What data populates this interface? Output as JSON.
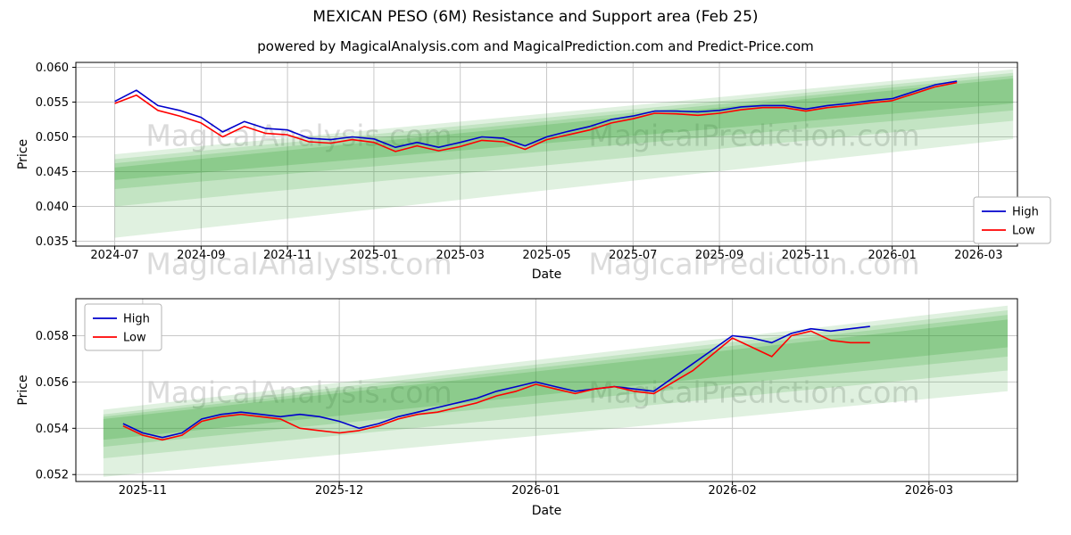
{
  "title": "MEXICAN PESO (6M) Resistance and Support area (Feb 25)",
  "subtitle": "powered by MagicalAnalysis.com and MagicalPrediction.com and Predict-Price.com",
  "watermarks": {
    "left": "MagicalAnalysis.com",
    "right": "MagicalPrediction.com"
  },
  "colors": {
    "high_line": "#0000cc",
    "low_line": "#ff0000",
    "band_green": "#2ca02c",
    "grid": "#c8c8c8"
  },
  "chart_data": [
    {
      "type": "line",
      "name": "top-chart",
      "xlabel": "Date",
      "ylabel": "Price",
      "x_unit": "months since 2024-07",
      "xlim": [
        -0.9,
        20.9
      ],
      "ylim": [
        0.0343,
        0.0607
      ],
      "grid": true,
      "xticks": [
        [
          0,
          "2024-07"
        ],
        [
          2,
          "2024-09"
        ],
        [
          4,
          "2024-11"
        ],
        [
          6,
          "2025-01"
        ],
        [
          8,
          "2025-03"
        ],
        [
          10,
          "2025-05"
        ],
        [
          12,
          "2025-07"
        ],
        [
          14,
          "2025-09"
        ],
        [
          16,
          "2025-11"
        ],
        [
          18,
          "2026-01"
        ],
        [
          20,
          "2026-03"
        ]
      ],
      "yticks": [
        [
          0.035,
          "0.035"
        ],
        [
          0.04,
          "0.040"
        ],
        [
          0.045,
          "0.045"
        ],
        [
          0.05,
          "0.050"
        ],
        [
          0.055,
          "0.055"
        ],
        [
          0.06,
          "0.060"
        ]
      ],
      "legend_position": "center-right",
      "series": [
        {
          "name": "High",
          "color": "#0000cc",
          "x": [
            0,
            0.5,
            1,
            1.5,
            2,
            2.5,
            3,
            3.5,
            4,
            4.5,
            5,
            5.5,
            6,
            6.5,
            7,
            7.5,
            8,
            8.5,
            9,
            9.5,
            10,
            10.5,
            11,
            11.5,
            12,
            12.5,
            13,
            13.5,
            14,
            14.5,
            15,
            15.5,
            16,
            16.5,
            17,
            17.5,
            18,
            18.5,
            19,
            19.5
          ],
          "y": [
            0.0551,
            0.0567,
            0.0545,
            0.0538,
            0.0528,
            0.0507,
            0.0522,
            0.0512,
            0.051,
            0.0498,
            0.0496,
            0.05,
            0.0497,
            0.0485,
            0.0492,
            0.0485,
            0.0492,
            0.05,
            0.0498,
            0.0487,
            0.05,
            0.0508,
            0.0515,
            0.0525,
            0.053,
            0.0537,
            0.0537,
            0.0536,
            0.0538,
            0.0543,
            0.0545,
            0.0545,
            0.054,
            0.0545,
            0.0548,
            0.0552,
            0.0555,
            0.0565,
            0.0575,
            0.058
          ]
        },
        {
          "name": "Low",
          "color": "#ff0000",
          "x": [
            0,
            0.5,
            1,
            1.5,
            2,
            2.5,
            3,
            3.5,
            4,
            4.5,
            5,
            5.5,
            6,
            6.5,
            7,
            7.5,
            8,
            8.5,
            9,
            9.5,
            10,
            10.5,
            11,
            11.5,
            12,
            12.5,
            13,
            13.5,
            14,
            14.5,
            15,
            15.5,
            16,
            16.5,
            17,
            17.5,
            18,
            18.5,
            19,
            19.5
          ],
          "y": [
            0.0548,
            0.056,
            0.0538,
            0.053,
            0.052,
            0.05,
            0.0515,
            0.0505,
            0.0503,
            0.0493,
            0.0491,
            0.0496,
            0.0492,
            0.0479,
            0.0487,
            0.048,
            0.0486,
            0.0495,
            0.0493,
            0.0482,
            0.0496,
            0.0503,
            0.051,
            0.052,
            0.0526,
            0.0534,
            0.0533,
            0.0531,
            0.0534,
            0.0539,
            0.0542,
            0.0542,
            0.0537,
            0.0542,
            0.0545,
            0.0549,
            0.0552,
            0.0562,
            0.0572,
            0.0578
          ]
        }
      ],
      "bands": [
        {
          "x": [
            0,
            20.8
          ],
          "bottom": [
            0.0355,
            0.0497
          ],
          "top": [
            0.0475,
            0.0597
          ],
          "color": "rgba(44,160,44,0.15)"
        },
        {
          "x": [
            0,
            20.8
          ],
          "bottom": [
            0.04,
            0.0523
          ],
          "top": [
            0.0468,
            0.0592
          ],
          "color": "rgba(44,160,44,0.16)"
        },
        {
          "x": [
            0,
            20.8
          ],
          "bottom": [
            0.0425,
            0.0538
          ],
          "top": [
            0.0462,
            0.0588
          ],
          "color": "rgba(44,160,44,0.18)"
        },
        {
          "x": [
            0,
            20.8
          ],
          "bottom": [
            0.0438,
            0.0548
          ],
          "top": [
            0.0456,
            0.0584
          ],
          "color": "rgba(44,160,44,0.22)"
        }
      ]
    },
    {
      "type": "line",
      "name": "bottom-chart",
      "xlabel": "Date",
      "ylabel": "Price",
      "x_unit": "months since 2025-11",
      "xlim": [
        -0.34,
        4.45
      ],
      "ylim": [
        0.0517,
        0.0596
      ],
      "grid": true,
      "xticks": [
        [
          0,
          "2025-11"
        ],
        [
          1,
          "2025-12"
        ],
        [
          2,
          "2026-01"
        ],
        [
          3,
          "2026-02"
        ],
        [
          4,
          "2026-03"
        ]
      ],
      "yticks": [
        [
          0.052,
          "0.052"
        ],
        [
          0.054,
          "0.054"
        ],
        [
          0.056,
          "0.056"
        ],
        [
          0.058,
          "0.058"
        ]
      ],
      "legend_position": "top-left",
      "series": [
        {
          "name": "High",
          "color": "#0000cc",
          "x": [
            -0.1,
            0,
            0.1,
            0.2,
            0.3,
            0.4,
            0.5,
            0.6,
            0.7,
            0.8,
            0.9,
            1,
            1.1,
            1.2,
            1.3,
            1.4,
            1.5,
            1.6,
            1.7,
            1.8,
            1.9,
            2,
            2.1,
            2.2,
            2.3,
            2.4,
            2.5,
            2.6,
            2.7,
            2.8,
            2.9,
            3,
            3.1,
            3.2,
            3.3,
            3.4,
            3.5,
            3.6,
            3.7
          ],
          "y": [
            0.0542,
            0.0538,
            0.0536,
            0.0538,
            0.0544,
            0.0546,
            0.0547,
            0.0546,
            0.0545,
            0.0546,
            0.0545,
            0.0543,
            0.054,
            0.0542,
            0.0545,
            0.0547,
            0.0549,
            0.0551,
            0.0553,
            0.0556,
            0.0558,
            0.056,
            0.0558,
            0.0556,
            0.0557,
            0.0558,
            0.0557,
            0.0556,
            0.0562,
            0.0568,
            0.0574,
            0.058,
            0.0579,
            0.0577,
            0.0581,
            0.0583,
            0.0582,
            0.0583,
            0.0584
          ]
        },
        {
          "name": "Low",
          "color": "#ff0000",
          "x": [
            -0.1,
            0,
            0.1,
            0.2,
            0.3,
            0.4,
            0.5,
            0.6,
            0.7,
            0.8,
            0.9,
            1,
            1.1,
            1.2,
            1.3,
            1.4,
            1.5,
            1.6,
            1.7,
            1.8,
            1.9,
            2,
            2.1,
            2.2,
            2.3,
            2.4,
            2.5,
            2.6,
            2.7,
            2.8,
            2.9,
            3,
            3.1,
            3.2,
            3.3,
            3.4,
            3.5,
            3.6,
            3.7
          ],
          "y": [
            0.0541,
            0.0537,
            0.0535,
            0.0537,
            0.0543,
            0.0545,
            0.0546,
            0.0545,
            0.0544,
            0.054,
            0.0539,
            0.0538,
            0.0539,
            0.0541,
            0.0544,
            0.0546,
            0.0547,
            0.0549,
            0.0551,
            0.0554,
            0.0556,
            0.0559,
            0.0557,
            0.0555,
            0.0557,
            0.0558,
            0.0556,
            0.0555,
            0.056,
            0.0565,
            0.0572,
            0.0579,
            0.0575,
            0.0571,
            0.058,
            0.0582,
            0.0578,
            0.0577,
            0.0577
          ]
        }
      ],
      "bands": [
        {
          "x": [
            -0.2,
            4.4
          ],
          "bottom": [
            0.0519,
            0.0556
          ],
          "top": [
            0.0548,
            0.0593
          ],
          "color": "rgba(44,160,44,0.15)"
        },
        {
          "x": [
            -0.2,
            4.4
          ],
          "bottom": [
            0.0527,
            0.0565
          ],
          "top": [
            0.0546,
            0.0591
          ],
          "color": "rgba(44,160,44,0.16)"
        },
        {
          "x": [
            -0.2,
            4.4
          ],
          "bottom": [
            0.0532,
            0.0571
          ],
          "top": [
            0.0545,
            0.0589
          ],
          "color": "rgba(44,160,44,0.18)"
        },
        {
          "x": [
            -0.2,
            4.4
          ],
          "bottom": [
            0.0535,
            0.0575
          ],
          "top": [
            0.0544,
            0.0587
          ],
          "color": "rgba(44,160,44,0.22)"
        }
      ]
    }
  ]
}
